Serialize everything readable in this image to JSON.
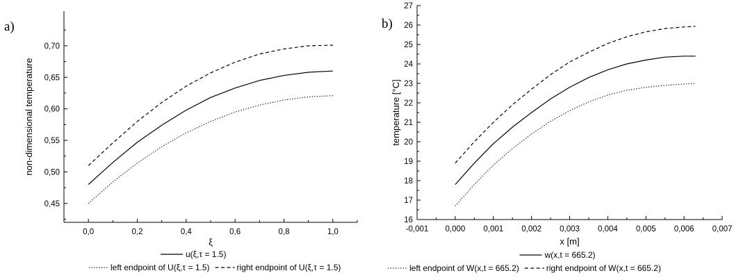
{
  "chart_data": [
    {
      "type": "line",
      "panel_label": "a)",
      "xlabel": "ξ",
      "ylabel": "non-dimensional temperature",
      "xlim": [
        -0.1,
        1.1
      ],
      "ylim": [
        0.42,
        0.755
      ],
      "xticks": [
        0.0,
        0.2,
        0.4,
        0.6,
        0.8,
        1.0
      ],
      "xtick_labels": [
        "0,0",
        "0,2",
        "0,4",
        "0,6",
        "0,8",
        "1,0"
      ],
      "yticks": [
        0.45,
        0.5,
        0.55,
        0.6,
        0.65,
        0.7
      ],
      "ytick_labels": [
        "0,45",
        "0,50",
        "0,55",
        "0,60",
        "0,65",
        "0,70"
      ],
      "grid": false,
      "legend_position": "bottom",
      "x": [
        0.0,
        0.1,
        0.2,
        0.3,
        0.4,
        0.5,
        0.6,
        0.7,
        0.8,
        0.9,
        1.0
      ],
      "series": [
        {
          "name": "u(ξ,τ = 1.5)",
          "style": "solid",
          "values": [
            0.48,
            0.515,
            0.547,
            0.574,
            0.598,
            0.618,
            0.633,
            0.645,
            0.653,
            0.658,
            0.66
          ]
        },
        {
          "name": "left endpoint of U(ξ,τ = 1.5)",
          "style": "dotted",
          "values": [
            0.45,
            0.484,
            0.514,
            0.54,
            0.562,
            0.58,
            0.595,
            0.606,
            0.614,
            0.619,
            0.621
          ]
        },
        {
          "name": "right endpoint of U(ξ,τ = 1.5)",
          "style": "dashed",
          "values": [
            0.51,
            0.546,
            0.58,
            0.61,
            0.636,
            0.657,
            0.674,
            0.687,
            0.695,
            0.7,
            0.701
          ]
        }
      ]
    },
    {
      "type": "line",
      "panel_label": "b)",
      "xlabel": "x [m]",
      "ylabel": "temperature [°C]",
      "xlim": [
        -0.001,
        0.007
      ],
      "ylim": [
        16,
        27
      ],
      "xticks": [
        -0.001,
        0.0,
        0.001,
        0.002,
        0.003,
        0.004,
        0.005,
        0.006,
        0.007
      ],
      "xtick_labels": [
        "-0,001",
        "0,000",
        "0,001",
        "0,002",
        "0,003",
        "0,004",
        "0,005",
        "0,006",
        "0,007"
      ],
      "yticks": [
        16,
        17,
        18,
        19,
        20,
        21,
        22,
        23,
        24,
        25,
        26,
        27
      ],
      "ytick_labels": [
        "16",
        "17",
        "18",
        "19",
        "20",
        "21",
        "22",
        "23",
        "24",
        "25",
        "26",
        "27"
      ],
      "grid": false,
      "legend_position": "bottom",
      "x": [
        0.0,
        0.0005,
        0.001,
        0.0015,
        0.002,
        0.0025,
        0.003,
        0.0035,
        0.004,
        0.0045,
        0.005,
        0.0055,
        0.006,
        0.0063
      ],
      "series": [
        {
          "name": "w(x,t = 665.2)",
          "style": "solid",
          "values": [
            17.8,
            18.9,
            19.9,
            20.75,
            21.5,
            22.2,
            22.8,
            23.3,
            23.7,
            24.0,
            24.2,
            24.35,
            24.4,
            24.4
          ]
        },
        {
          "name": "left endpoint of W(x,t = 665.2)",
          "style": "dotted",
          "values": [
            16.7,
            17.8,
            18.8,
            19.65,
            20.4,
            21.05,
            21.6,
            22.05,
            22.4,
            22.65,
            22.8,
            22.9,
            22.97,
            23.0
          ]
        },
        {
          "name": "right endpoint of W(x,t = 665.2)",
          "style": "dashed",
          "values": [
            18.9,
            20.0,
            21.0,
            21.9,
            22.7,
            23.45,
            24.1,
            24.6,
            25.05,
            25.4,
            25.65,
            25.82,
            25.9,
            25.93
          ]
        }
      ]
    }
  ]
}
